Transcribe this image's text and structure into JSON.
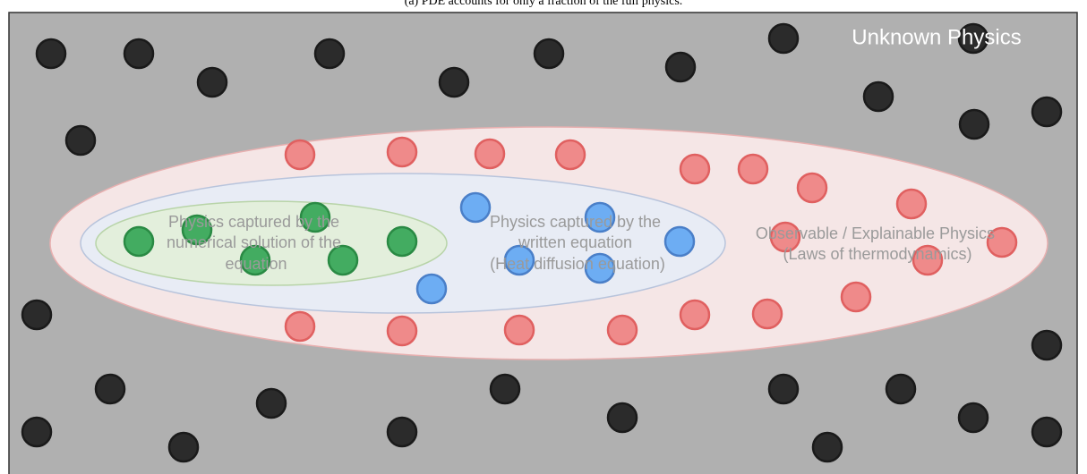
{
  "caption": "(a) PDE accounts for only a fraction of the full physics.",
  "labels": {
    "unknown": "Unknown Physics",
    "numerical": [
      "Physics captured by the",
      "numerical solution of the",
      "equation"
    ],
    "written": [
      "Physics captured by the",
      "written equation",
      "(Heat diffusion equation)"
    ],
    "observable": [
      "Observable / Explainable Physics",
      "(Laws of thermodynamics)"
    ]
  }
}
